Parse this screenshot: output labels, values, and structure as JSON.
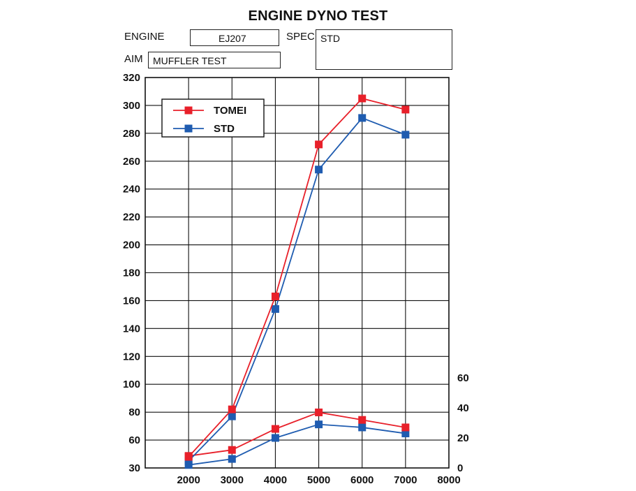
{
  "header": {
    "title": "ENGINE DYNO TEST",
    "engine_label": "ENGINE",
    "engine_value": "EJ207",
    "spec_label": "SPEC",
    "spec_value": "STD",
    "aim_label": "AIM",
    "aim_value": "MUFFLER TEST"
  },
  "chart_data": {
    "type": "line",
    "title": "ENGINE DYNO TEST",
    "x": [
      2000,
      3000,
      4000,
      5000,
      6000,
      7000
    ],
    "x_ticks": [
      2000,
      3000,
      4000,
      5000,
      6000,
      7000,
      8000
    ],
    "xlim": [
      1000,
      8000
    ],
    "y_left_ticks": [
      30,
      60,
      80,
      100,
      120,
      140,
      160,
      180,
      200,
      220,
      240,
      260,
      280,
      300,
      320
    ],
    "ylim_left": [
      40,
      320
    ],
    "y_right_ticks": [
      0,
      20,
      40,
      60
    ],
    "ylim_right": [
      0,
      60
    ],
    "grid": true,
    "legend_position": "top-left",
    "colors": {
      "TOMEI": "#e8202a",
      "STD": "#1f5cb0"
    },
    "power_series": [
      {
        "name": "TOMEI",
        "axis": "left",
        "values": [
          48,
          82,
          163,
          272,
          305,
          297
        ]
      },
      {
        "name": "STD",
        "axis": "left",
        "values": [
          45,
          77,
          154,
          254,
          291,
          279
        ]
      }
    ],
    "torque_series": [
      {
        "name": "TOMEI",
        "axis": "right",
        "values": [
          8,
          12,
          26,
          37,
          32,
          27
        ]
      },
      {
        "name": "STD",
        "axis": "right",
        "values": [
          2,
          6,
          20,
          29,
          27,
          23
        ]
      }
    ],
    "legend": [
      "TOMEI",
      "STD"
    ]
  }
}
